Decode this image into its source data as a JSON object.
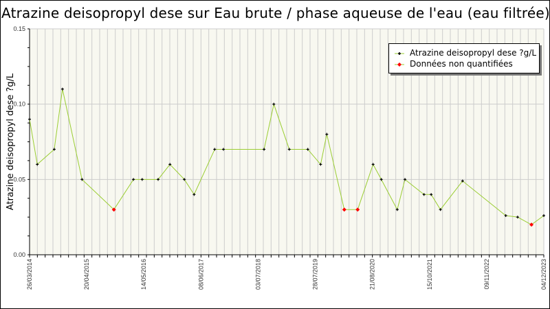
{
  "title": "Atrazine deisopropyl dese sur Eau brute / phase aqueuse de l'eau (eau filtrée)",
  "colors": {
    "line": "#9acd32",
    "marker": "#000000",
    "nonquantified_marker": "#ff0000",
    "plot_background": "#f8f8f0",
    "grid": "#cccccc"
  },
  "legend": {
    "items": [
      {
        "label": "Atrazine deisopropyl dese ?g/L",
        "marker": "black-cross"
      },
      {
        "label": "Données non quantifiées",
        "marker": "red-diamond"
      }
    ]
  },
  "chart_data": {
    "type": "line",
    "title": "Atrazine deisopropyl dese sur Eau brute / phase aqueuse de l'eau (eau filtrée)",
    "xlabel": "",
    "ylabel": "Atrazine deisopropyl dese ?g/L",
    "ylim": [
      0,
      0.15
    ],
    "y_ticks": [
      "0.00",
      "0.05",
      "0.10",
      "0.15"
    ],
    "x_tick_labels": [
      "26/03/2014",
      "20/04/2015",
      "14/05/2016",
      "08/06/2017",
      "03/07/2018",
      "28/07/2019",
      "21/08/2020",
      "15/10/2021",
      "09/11/2022",
      "04/12/2023"
    ],
    "grid": true,
    "legend_position": "top-right",
    "series": [
      {
        "name": "Atrazine deisopropyl dese ?g/L",
        "points": [
          {
            "x": 0.0,
            "y": 0.09,
            "nq": false
          },
          {
            "x": 0.015,
            "y": 0.06,
            "nq": false
          },
          {
            "x": 0.048,
            "y": 0.07,
            "nq": false
          },
          {
            "x": 0.064,
            "y": 0.11,
            "nq": false
          },
          {
            "x": 0.102,
            "y": 0.05,
            "nq": false
          },
          {
            "x": 0.164,
            "y": 0.03,
            "nq": true
          },
          {
            "x": 0.202,
            "y": 0.05,
            "nq": false
          },
          {
            "x": 0.219,
            "y": 0.05,
            "nq": false
          },
          {
            "x": 0.25,
            "y": 0.05,
            "nq": false
          },
          {
            "x": 0.273,
            "y": 0.06,
            "nq": false
          },
          {
            "x": 0.301,
            "y": 0.05,
            "nq": false
          },
          {
            "x": 0.32,
            "y": 0.04,
            "nq": false
          },
          {
            "x": 0.36,
            "y": 0.07,
            "nq": false
          },
          {
            "x": 0.377,
            "y": 0.07,
            "nq": false
          },
          {
            "x": 0.456,
            "y": 0.07,
            "nq": false
          },
          {
            "x": 0.475,
            "y": 0.1,
            "nq": false
          },
          {
            "x": 0.505,
            "y": 0.07,
            "nq": false
          },
          {
            "x": 0.541,
            "y": 0.07,
            "nq": false
          },
          {
            "x": 0.566,
            "y": 0.06,
            "nq": false
          },
          {
            "x": 0.578,
            "y": 0.08,
            "nq": false
          },
          {
            "x": 0.612,
            "y": 0.03,
            "nq": true
          },
          {
            "x": 0.638,
            "y": 0.03,
            "nq": true
          },
          {
            "x": 0.668,
            "y": 0.06,
            "nq": false
          },
          {
            "x": 0.684,
            "y": 0.05,
            "nq": false
          },
          {
            "x": 0.715,
            "y": 0.03,
            "nq": false
          },
          {
            "x": 0.73,
            "y": 0.05,
            "nq": false
          },
          {
            "x": 0.767,
            "y": 0.04,
            "nq": false
          },
          {
            "x": 0.781,
            "y": 0.04,
            "nq": false
          },
          {
            "x": 0.799,
            "y": 0.03,
            "nq": false
          },
          {
            "x": 0.842,
            "y": 0.049,
            "nq": false
          },
          {
            "x": 0.926,
            "y": 0.026,
            "nq": false
          },
          {
            "x": 0.949,
            "y": 0.025,
            "nq": false
          },
          {
            "x": 0.976,
            "y": 0.02,
            "nq": true
          },
          {
            "x": 1.0,
            "y": 0.026,
            "nq": false
          }
        ]
      }
    ]
  }
}
